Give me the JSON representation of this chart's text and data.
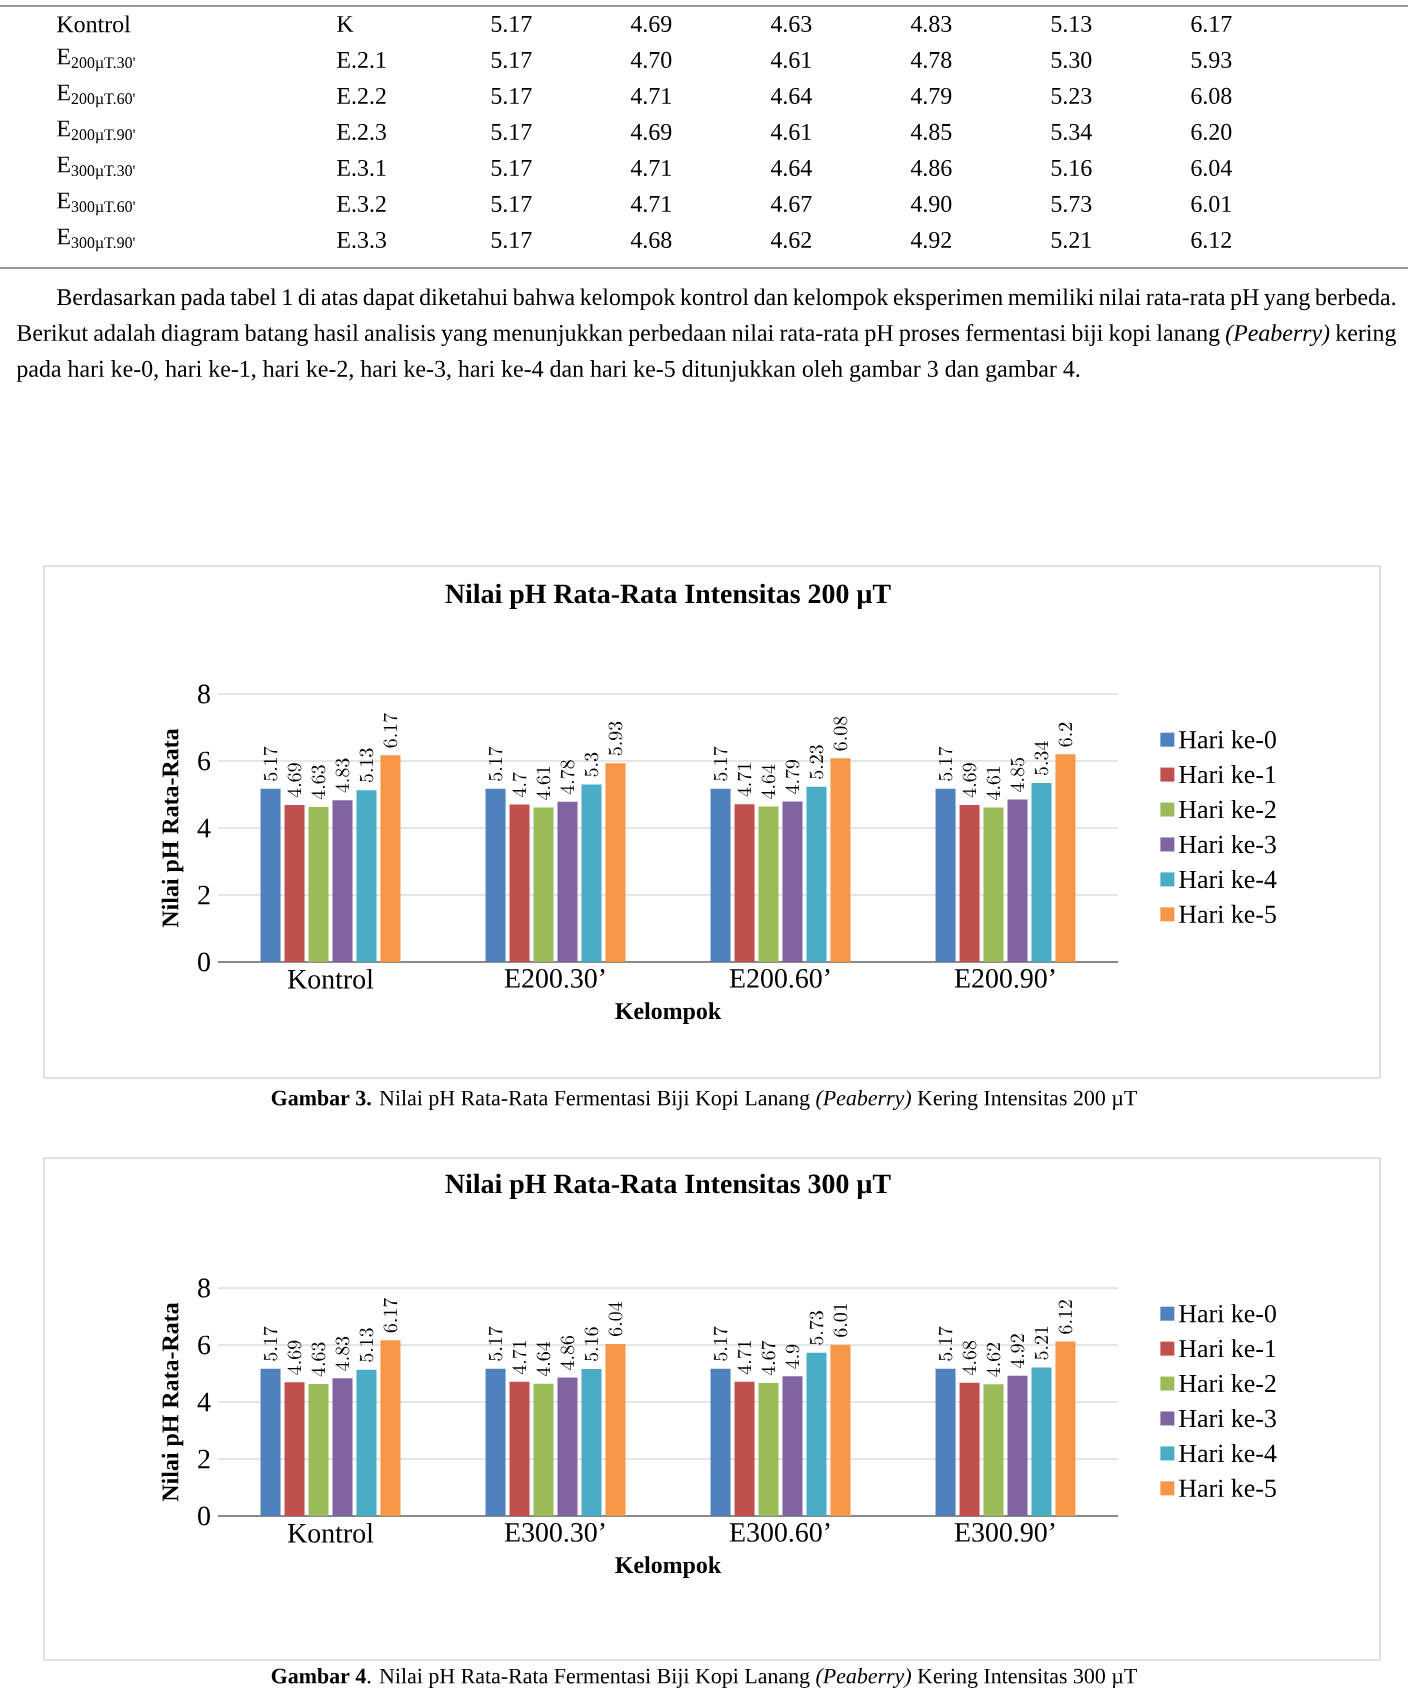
{
  "chart_data": [
    {
      "type": "bar",
      "title": "Nilai pH Rata-Rata Intensitas 200 µT",
      "xlabel": "Kelompok",
      "ylabel": "Nilai pH Rata-Rata",
      "categories": [
        "Kontrol",
        "E200.30’",
        "E200.60’",
        "E200.90’"
      ],
      "series": [
        {
          "name": "Hari ke-0",
          "color": "#4f81bd",
          "values": [
            5.17,
            5.17,
            5.17,
            5.17
          ]
        },
        {
          "name": "Hari ke-1",
          "color": "#c0504d",
          "values": [
            4.69,
            4.7,
            4.71,
            4.69
          ]
        },
        {
          "name": "Hari ke-2",
          "color": "#9bbb59",
          "values": [
            4.63,
            4.61,
            4.64,
            4.61
          ]
        },
        {
          "name": "Hari ke-3",
          "color": "#8064a2",
          "values": [
            4.83,
            4.78,
            4.79,
            4.85
          ]
        },
        {
          "name": "Hari ke-4",
          "color": "#4bacc6",
          "values": [
            5.13,
            5.3,
            5.23,
            5.34
          ]
        },
        {
          "name": "Hari ke-5",
          "color": "#f79646",
          "values": [
            6.17,
            5.93,
            6.08,
            6.2
          ]
        }
      ],
      "ylim": [
        0,
        8
      ],
      "yticks": [
        0,
        2,
        4,
        6,
        8
      ],
      "grid": "y",
      "legend": "right",
      "data_labels": true,
      "annotations": [
        "Kontrol",
        "K",
        "5.17",
        "4.69",
        "4.63",
        "4.83",
        "5.13",
        "6.17",
        "E$_{200µT.30'}$",
        "E.2.1",
        "5.17",
        "4.70",
        "4.61",
        "4.78",
        "5.30",
        "5.93",
        "E$_{200µT.60'}$",
        "E.2.2",
        "5.17",
        "4.71",
        "4.64",
        "4.79",
        "5.23",
        "6.08",
        "E$_{200µT.90'}$",
        "E.2.3",
        "5.17",
        "4.69",
        "4.61",
        "4.85",
        "5.34",
        "6.20",
        "E$_{300µT.30'}$",
        "E.3.1",
        "5.17",
        "4.71",
        "4.64",
        "4.86",
        "5.16",
        "6.04",
        "E$_{300µT.60'}$",
        "E.3.2",
        "5.17",
        "4.71",
        "4.67",
        "4.90",
        "5.73",
        "6.01",
        "E$_{300µT.90'}$",
        "E.3.3",
        "5.17",
        "4.68",
        "4.62",
        "4.92",
        "5.21",
        "6.12",
        "Berdasarkan pada tabel 1 di atas dapat diketahui bahwa kelompok kontrol dan kelompok eksperimen memiliki nilai rata-rata pH yang berbeda. Berikut adalah diagram batang hasil analisis yang menunjukkan perbedaan nilai rata-rata pH proses fermentasi biji kopi lanang *(Peaberry)* kering pada hari ke-0, hari ke-1, hari ke-2, hari ke-3, hari ke-4 dan hari ke-5 ditunjukkan oleh gambar 3 dan gambar 4.",
        "**Gambar 3.** Nilai pH Rata-Rata Fermentasi Biji Kopi Lanang *(Peaberry)* Kering Intensitas  200 µT"
      ]
    },
    {
      "type": "bar",
      "title": "Nilai pH Rata-Rata Intensitas 300 µT",
      "xlabel": "Kelompok",
      "ylabel": "Nilai pH Rata-Rata",
      "categories": [
        "Kontrol",
        "E300.30’",
        "E300.60’",
        "E300.90’"
      ],
      "series": [
        {
          "name": "Hari ke-0",
          "color": "#4f81bd",
          "values": [
            5.17,
            5.17,
            5.17,
            5.17
          ]
        },
        {
          "name": "Hari ke-1",
          "color": "#c0504d",
          "values": [
            4.69,
            4.71,
            4.71,
            4.68
          ]
        },
        {
          "name": "Hari ke-2",
          "color": "#9bbb59",
          "values": [
            4.63,
            4.64,
            4.67,
            4.62
          ]
        },
        {
          "name": "Hari ke-3",
          "color": "#8064a2",
          "values": [
            4.83,
            4.86,
            4.9,
            4.92
          ]
        },
        {
          "name": "Hari ke-4",
          "color": "#4bacc6",
          "values": [
            5.13,
            5.16,
            5.73,
            5.21
          ]
        },
        {
          "name": "Hari ke-5",
          "color": "#f79646",
          "values": [
            6.17,
            6.04,
            6.01,
            6.12
          ]
        }
      ],
      "ylim": [
        0,
        8
      ],
      "yticks": [
        0,
        2,
        4,
        6,
        8
      ],
      "grid": "y",
      "legend": "right",
      "data_labels": true,
      "annotations": [
        "**Gambar 4**. Nilai pH Rata-Rata Fermentasi Biji Kopi Lanang *(Peaberry)* Kering Intensitas  300 µT"
      ]
    }
  ]
}
